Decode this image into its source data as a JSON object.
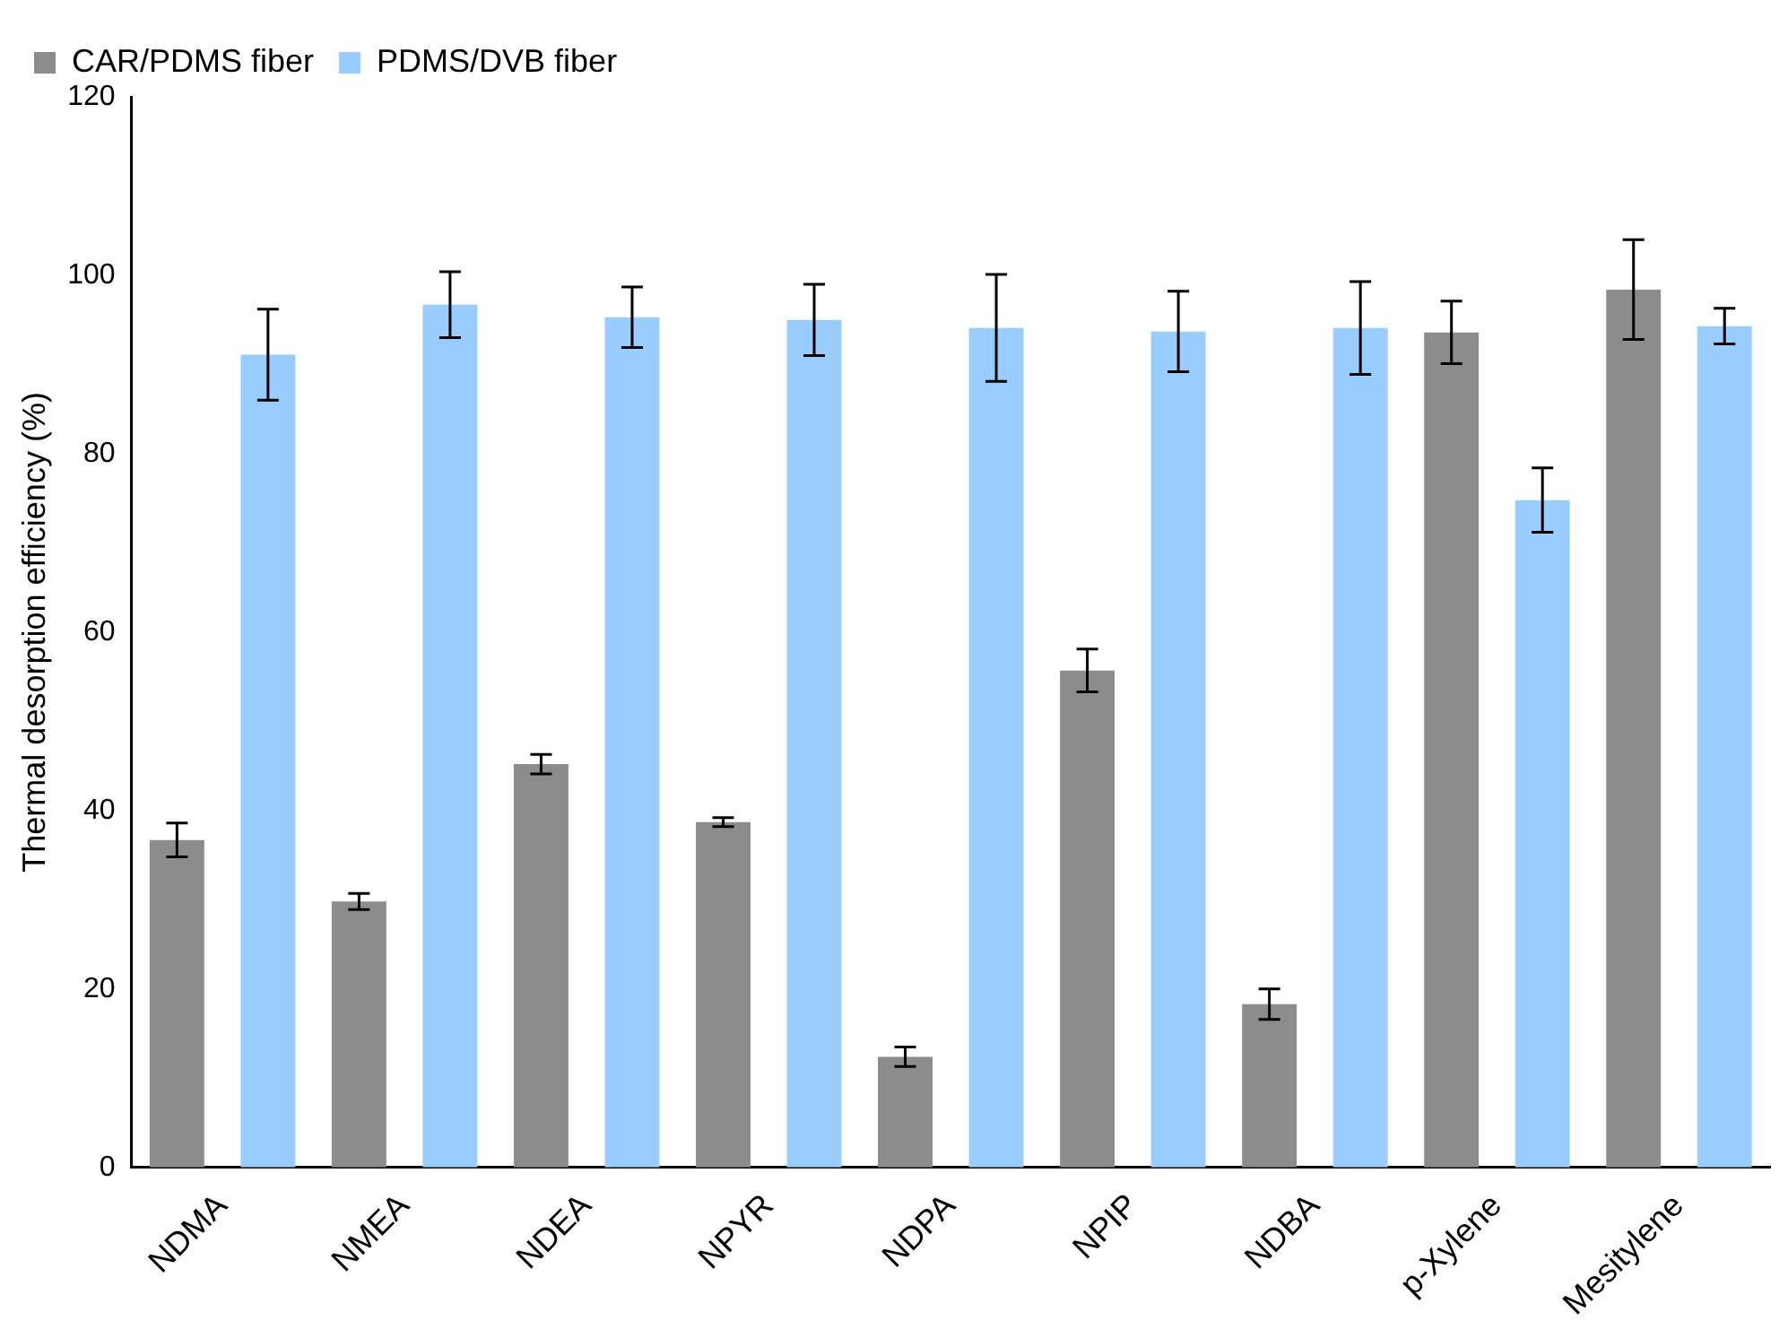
{
  "chart_data": {
    "type": "bar",
    "ylabel": "Thermal desorption efficiency (%)",
    "categories": [
      "NDMA",
      "NMEA",
      "NDEA",
      "NPYR",
      "NDPA",
      "NPIP",
      "NDBA",
      "p-Xylene",
      "Mesitylene"
    ],
    "series": [
      {
        "name": "CAR/PDMS fiber",
        "color": "#8c8c8c",
        "values": [
          36.7,
          29.8,
          45.2,
          38.7,
          12.4,
          55.7,
          18.3,
          93.6,
          98.4
        ],
        "errors": [
          1.9,
          0.9,
          1.1,
          0.5,
          1.1,
          2.4,
          1.7,
          3.5,
          5.6
        ]
      },
      {
        "name": "PDMS/DVB fiber",
        "color": "#99ccff",
        "values": [
          91.1,
          96.7,
          95.3,
          95.0,
          94.1,
          93.7,
          94.1,
          74.8,
          94.3
        ],
        "errors": [
          5.1,
          3.7,
          3.4,
          4.0,
          6.0,
          4.5,
          5.2,
          3.6,
          2.0
        ]
      }
    ],
    "ylim": [
      0,
      120
    ],
    "yticks": [
      0,
      20,
      40,
      60,
      80,
      100,
      120
    ],
    "grid": false,
    "legend": "top left"
  }
}
